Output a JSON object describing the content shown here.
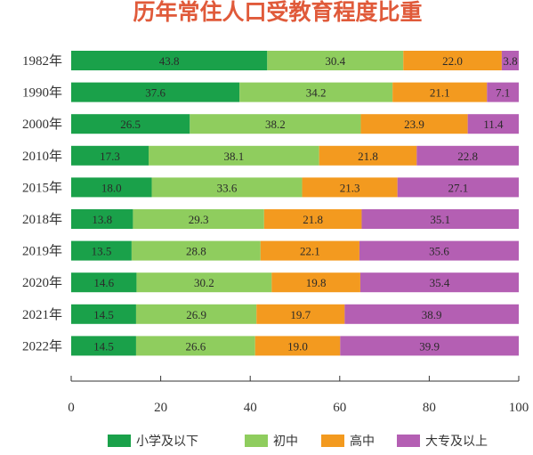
{
  "chart_data": {
    "type": "bar",
    "orientation": "horizontal",
    "stacked": true,
    "title": "历年常住人口受教育程度比重",
    "categories": [
      "1982年",
      "1990年",
      "2000年",
      "2010年",
      "2015年",
      "2018年",
      "2019年",
      "2020年",
      "2021年",
      "2022年"
    ],
    "series": [
      {
        "name": "小学及以下",
        "color": "#1aa14a",
        "values": [
          43.8,
          37.6,
          26.5,
          17.3,
          18.0,
          13.8,
          13.5,
          14.6,
          14.5,
          14.5
        ]
      },
      {
        "name": "初中",
        "color": "#8fcd5e",
        "values": [
          30.4,
          34.2,
          38.2,
          38.1,
          33.6,
          29.3,
          28.8,
          30.2,
          26.9,
          26.6
        ]
      },
      {
        "name": "高中",
        "color": "#f39a1f",
        "values": [
          22.0,
          21.1,
          23.9,
          21.8,
          21.3,
          21.8,
          22.1,
          19.8,
          19.7,
          19.0
        ]
      },
      {
        "name": "大专及以上",
        "color": "#b45fb3",
        "values": [
          3.8,
          7.1,
          11.4,
          22.8,
          27.1,
          35.1,
          35.6,
          35.4,
          38.9,
          39.9
        ]
      }
    ],
    "xticks": [
      "0",
      "20",
      "40",
      "60",
      "80",
      "100"
    ],
    "xlim": [
      0,
      100
    ],
    "grid": false,
    "legend": "bottom"
  }
}
